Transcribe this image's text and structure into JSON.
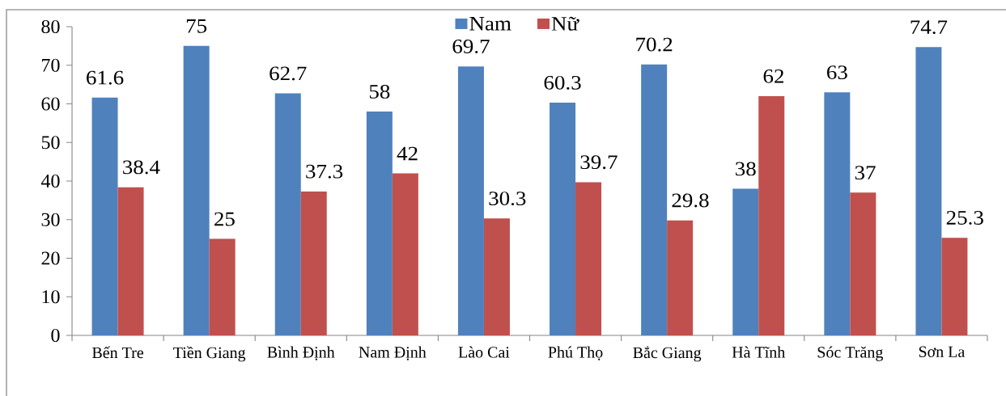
{
  "chart_data": {
    "type": "bar",
    "categories": [
      "Bến Tre",
      "Tiền Giang",
      "Bình Định",
      "Nam Định",
      "Lào Cai",
      "Phú Thọ",
      "Bắc Giang",
      "Hà Tĩnh",
      "Sóc Trăng",
      "Sơn La"
    ],
    "series": [
      {
        "name": "Nam",
        "color": "#4f81bd",
        "values": [
          61.6,
          75,
          62.7,
          58,
          69.7,
          60.3,
          70.2,
          38,
          63,
          74.7
        ]
      },
      {
        "name": "Nữ",
        "color": "#c0504d",
        "values": [
          38.4,
          25,
          37.3,
          42,
          30.3,
          39.7,
          29.8,
          62,
          37,
          25.3
        ]
      }
    ],
    "ylim": [
      0,
      80
    ],
    "yticks": [
      0,
      10,
      20,
      30,
      40,
      50,
      60,
      70,
      80
    ],
    "data_labels": true,
    "legend": "top"
  }
}
